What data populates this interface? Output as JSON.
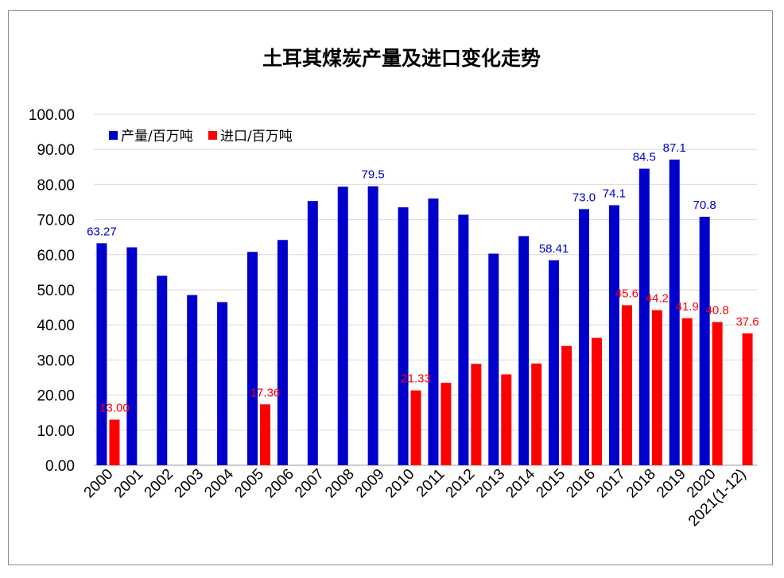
{
  "chart_data": {
    "type": "bar",
    "title": "土耳其煤炭产量及进口变化走势",
    "xlabel": "",
    "ylabel": "",
    "ylim": [
      0,
      100
    ],
    "yticks": [
      "0.00",
      "10.00",
      "20.00",
      "30.00",
      "40.00",
      "50.00",
      "60.00",
      "70.00",
      "80.00",
      "90.00",
      "100.00"
    ],
    "grid": true,
    "legend_position": "top-left",
    "categories": [
      "2000",
      "2001",
      "2002",
      "2003",
      "2004",
      "2005",
      "2006",
      "2007",
      "2008",
      "2009",
      "2010",
      "2011",
      "2012",
      "2013",
      "2014",
      "2015",
      "2016",
      "2017",
      "2018",
      "2019",
      "2020",
      "2021(1-12)"
    ],
    "series": [
      {
        "name": "产量/百万吨",
        "color": "#0000cc",
        "label_color": "#0000cc",
        "values": [
          63.27,
          62.1,
          54.0,
          48.5,
          46.5,
          60.8,
          64.2,
          75.3,
          79.4,
          79.5,
          73.5,
          76.0,
          71.4,
          60.3,
          65.3,
          58.41,
          73.0,
          74.1,
          84.5,
          87.1,
          70.8,
          null
        ],
        "labels": [
          "63.27",
          "",
          "",
          "",
          "",
          "",
          "",
          "",
          "",
          "79.5",
          "",
          "",
          "",
          "",
          "",
          "58.41",
          "73.0",
          "74.1",
          "84.5",
          "87.1",
          "70.8",
          ""
        ]
      },
      {
        "name": "进口/百万吨",
        "color": "#ff0000",
        "label_color": "#ff0000",
        "values": [
          13.0,
          null,
          null,
          null,
          null,
          17.36,
          null,
          null,
          null,
          null,
          21.33,
          23.5,
          28.9,
          25.9,
          29.0,
          34.0,
          36.3,
          45.6,
          44.2,
          41.9,
          40.8,
          37.6
        ],
        "labels": [
          "13.00",
          "",
          "",
          "",
          "",
          "17.36",
          "",
          "",
          "",
          "",
          "21.33",
          "",
          "",
          "",
          "",
          "",
          "",
          "45.6",
          "44.2",
          "41.9",
          "40.8",
          "37.6"
        ]
      }
    ]
  }
}
